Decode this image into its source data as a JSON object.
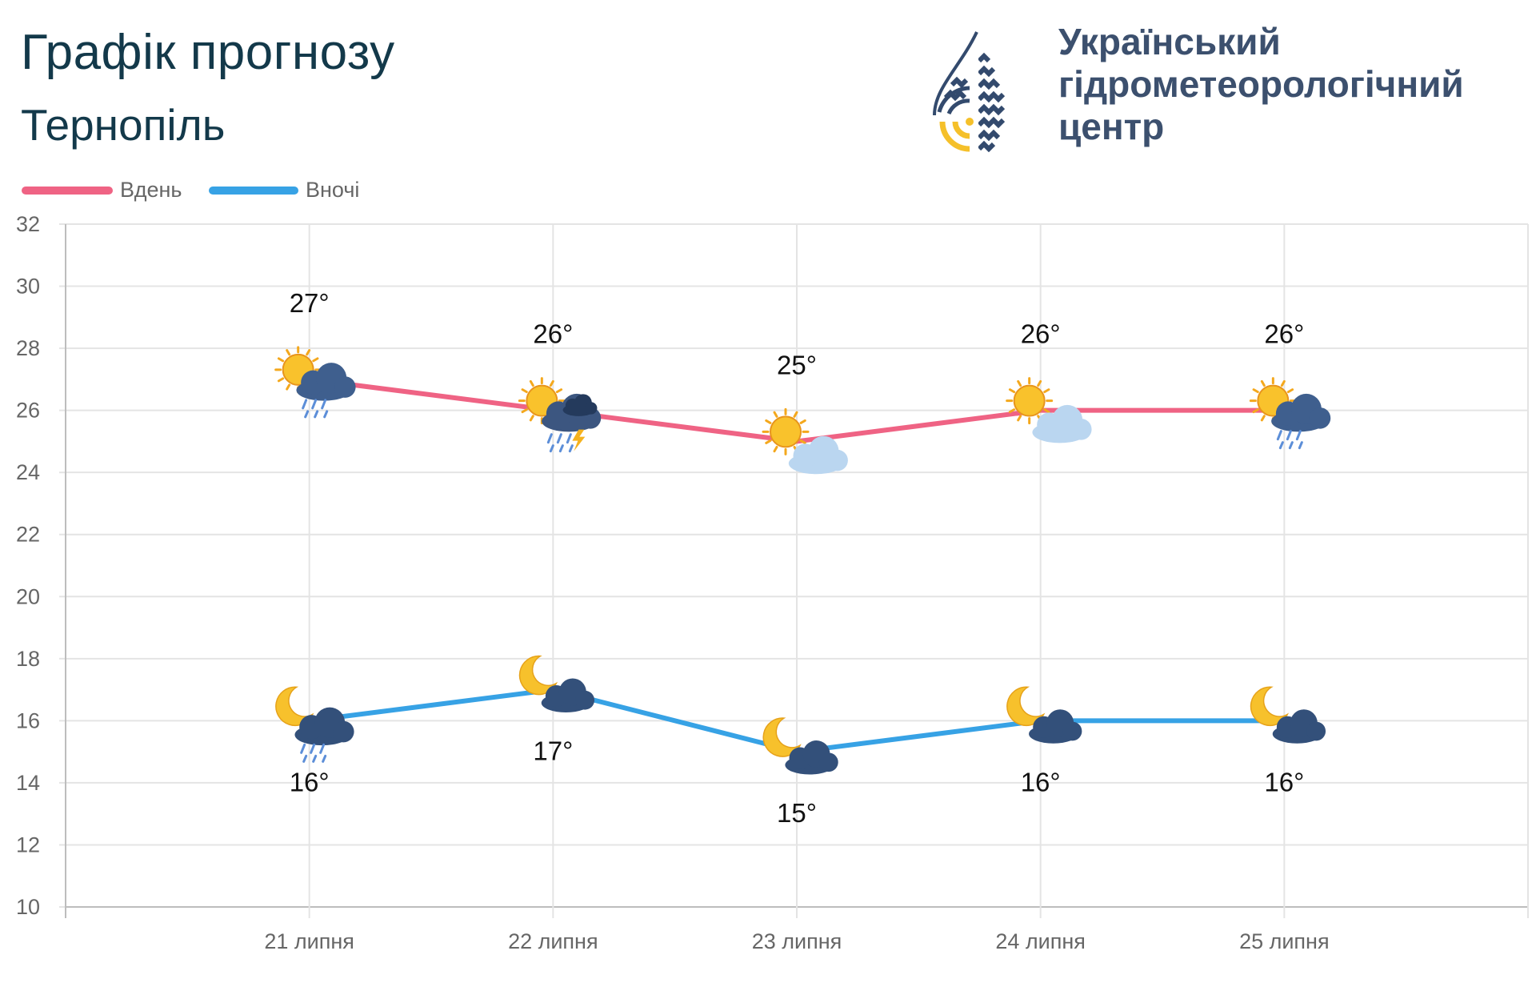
{
  "header": {
    "title": "Графік прогнозу",
    "city": "Тернопіль",
    "org_line1": "Український",
    "org_line2": "гідрометеорологічний",
    "org_line3": "центр"
  },
  "chart_data": {
    "type": "line",
    "categories": [
      "21 липня",
      "22 липня",
      "23 липня",
      "24 липня",
      "25 липня"
    ],
    "series": [
      {
        "name": "Вдень",
        "color": "#ef6384",
        "values": [
          27,
          26,
          25,
          26,
          26
        ],
        "labels": [
          "27°",
          "26°",
          "25°",
          "26°",
          "26°"
        ],
        "icons": [
          "sun-cloud-rain-icon",
          "sun-storm-thunder-icon",
          "sun-cloud-icon",
          "sun-cloud-icon",
          "sun-cloud-rain-icon"
        ]
      },
      {
        "name": "Вночі",
        "color": "#37a2e5",
        "values": [
          16,
          17,
          15,
          16,
          16
        ],
        "labels": [
          "16°",
          "17°",
          "15°",
          "16°",
          "16°"
        ],
        "icons": [
          "moon-cloud-rain-icon",
          "moon-cloud-icon",
          "moon-cloud-icon",
          "moon-cloud-icon",
          "moon-cloud-icon"
        ]
      }
    ],
    "ylim": [
      10,
      32
    ],
    "yticks": [
      "32",
      "30",
      "28",
      "26",
      "24",
      "22",
      "20",
      "18",
      "16",
      "14",
      "12",
      "10"
    ],
    "grid": true,
    "legend_position": "top-left"
  }
}
